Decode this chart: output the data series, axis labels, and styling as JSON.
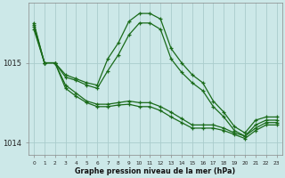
{
  "title": "Graphe pression niveau de la mer (hPa)",
  "background_color": "#cce8e8",
  "grid_color": "#aacccc",
  "line_color": "#1a6b1a",
  "x_ticks": [
    0,
    1,
    2,
    3,
    4,
    5,
    6,
    7,
    8,
    9,
    10,
    11,
    12,
    13,
    14,
    15,
    16,
    17,
    18,
    19,
    20,
    21,
    22,
    23
  ],
  "ylim": [
    1013.85,
    1015.75
  ],
  "yticks": [
    1014,
    1015
  ],
  "series": [
    [
      1015.5,
      1015.0,
      1015.0,
      1014.85,
      1014.8,
      1014.75,
      1014.72,
      1015.05,
      1015.25,
      1015.52,
      1015.62,
      1015.62,
      1015.55,
      1015.18,
      1015.0,
      1014.85,
      1014.75,
      1014.52,
      1014.38,
      1014.2,
      1014.12,
      1014.28,
      1014.32,
      1014.32
    ],
    [
      1015.48,
      1015.0,
      1015.0,
      1014.82,
      1014.78,
      1014.72,
      1014.68,
      1014.9,
      1015.1,
      1015.35,
      1015.5,
      1015.5,
      1015.42,
      1015.05,
      1014.88,
      1014.75,
      1014.65,
      1014.45,
      1014.32,
      1014.15,
      1014.08,
      1014.22,
      1014.28,
      1014.28
    ],
    [
      1015.45,
      1015.0,
      1015.0,
      1014.72,
      1014.62,
      1014.52,
      1014.48,
      1014.48,
      1014.5,
      1014.52,
      1014.5,
      1014.5,
      1014.45,
      1014.38,
      1014.3,
      1014.22,
      1014.22,
      1014.22,
      1014.18,
      1014.12,
      1014.08,
      1014.18,
      1014.25,
      1014.25
    ],
    [
      1015.42,
      1015.0,
      1015.0,
      1014.68,
      1014.58,
      1014.5,
      1014.45,
      1014.45,
      1014.47,
      1014.48,
      1014.45,
      1014.45,
      1014.4,
      1014.32,
      1014.25,
      1014.18,
      1014.18,
      1014.18,
      1014.15,
      1014.1,
      1014.05,
      1014.15,
      1014.22,
      1014.22
    ]
  ]
}
